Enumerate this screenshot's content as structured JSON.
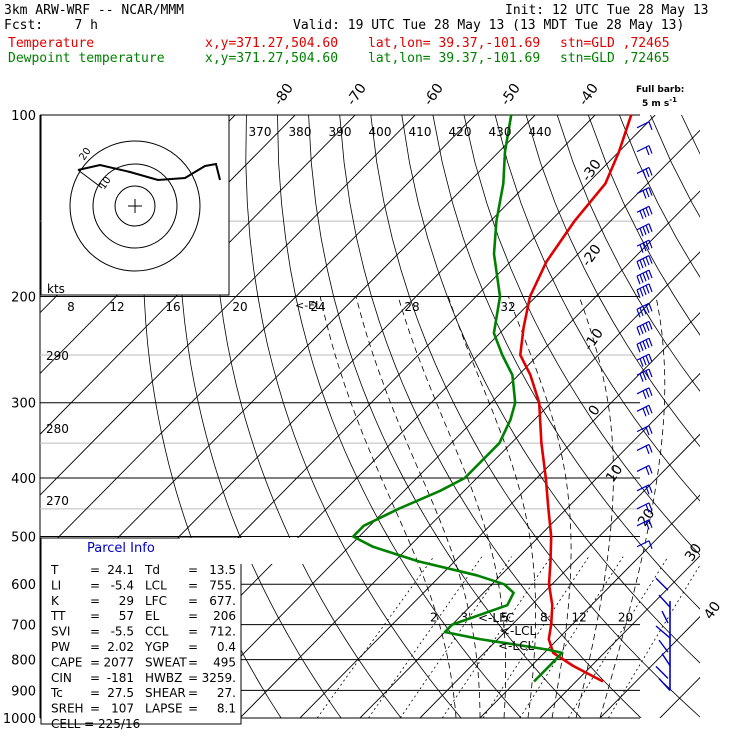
{
  "header": {
    "title": "3km ARW-WRF -- NCAR/MMM",
    "init": "Init: 12 UTC Tue 28 May 13",
    "fcst": "Fcst:    7 h",
    "valid": "Valid: 19 UTC Tue 28 May 13 (13 MDT Tue 28 May 13)",
    "temp_line": {
      "label": "Temperature",
      "xy": "x,y=371.27,504.60",
      "latlon": "lat,lon= 39.37,-101.69",
      "stn": "stn=GLD ,72465"
    },
    "dew_line": {
      "label": "Dewpoint temperature",
      "xy": "x,y=371.27,504.60",
      "latlon": "lat,lon= 39.37,-101.69",
      "stn": "stn=GLD ,72465"
    }
  },
  "colors": {
    "temperature": "#e00000",
    "dewpoint": "#008000",
    "parcel_info": "#0000c0",
    "wind_barbs": "#0000c0"
  },
  "barb_key": {
    "line1": "Full barb:",
    "line2": "5 m s",
    "exp": "-1"
  },
  "chart_data": {
    "type": "line",
    "title": "3km ARW-WRF -- NCAR/MMM",
    "pressure_levels": [
      "100",
      "200",
      "300",
      "400",
      "500",
      "600",
      "700",
      "800",
      "900",
      "1000"
    ],
    "temperature_axis_labels": [
      "-80",
      "-70",
      "-60",
      "-50",
      "-40",
      "-30",
      "-20",
      "-10",
      "0",
      "10",
      "20",
      "30",
      "40"
    ],
    "theta_labels": [
      "370",
      "380",
      "390",
      "400",
      "410",
      "420",
      "430",
      "440"
    ],
    "mixing_ratio_labels": [
      "2",
      "3",
      "5",
      "8",
      "12",
      "20"
    ],
    "series": [
      {
        "name": "Temperature",
        "color": "#e00000",
        "points": [
          {
            "p": 870,
            "t": 24.5
          },
          {
            "p": 820,
            "t": 17
          },
          {
            "p": 780,
            "t": 11.5
          },
          {
            "p": 740,
            "t": 8.5
          },
          {
            "p": 700,
            "t": 6.5
          },
          {
            "p": 650,
            "t": 3.5
          },
          {
            "p": 600,
            "t": -0.5
          },
          {
            "p": 550,
            "t": -4
          },
          {
            "p": 500,
            "t": -8
          },
          {
            "p": 450,
            "t": -13
          },
          {
            "p": 400,
            "t": -18.5
          },
          {
            "p": 350,
            "t": -25
          },
          {
            "p": 300,
            "t": -32
          },
          {
            "p": 270,
            "t": -38
          },
          {
            "p": 250,
            "t": -43
          },
          {
            "p": 225,
            "t": -47
          },
          {
            "p": 200,
            "t": -51
          },
          {
            "p": 175,
            "t": -54
          },
          {
            "p": 150,
            "t": -56
          },
          {
            "p": 130,
            "t": -57
          },
          {
            "p": 115,
            "t": -60
          },
          {
            "p": 100,
            "t": -64
          }
        ]
      },
      {
        "name": "Dewpoint temperature",
        "color": "#008000",
        "points": [
          {
            "p": 870,
            "t": 13
          },
          {
            "p": 820,
            "t": 13
          },
          {
            "p": 780,
            "t": 13
          },
          {
            "p": 770,
            "t": 10
          },
          {
            "p": 740,
            "t": -3
          },
          {
            "p": 720,
            "t": -10
          },
          {
            "p": 700,
            "t": -10
          },
          {
            "p": 650,
            "t": -4
          },
          {
            "p": 620,
            "t": -5
          },
          {
            "p": 600,
            "t": -8
          },
          {
            "p": 580,
            "t": -14
          },
          {
            "p": 550,
            "t": -26
          },
          {
            "p": 520,
            "t": -36
          },
          {
            "p": 500,
            "t": -41
          },
          {
            "p": 480,
            "t": -41
          },
          {
            "p": 450,
            "t": -38
          },
          {
            "p": 420,
            "t": -34
          },
          {
            "p": 400,
            "t": -32
          },
          {
            "p": 350,
            "t": -32
          },
          {
            "p": 320,
            "t": -34
          },
          {
            "p": 300,
            "t": -36
          },
          {
            "p": 270,
            "t": -41
          },
          {
            "p": 250,
            "t": -46
          },
          {
            "p": 230,
            "t": -51
          },
          {
            "p": 200,
            "t": -56
          },
          {
            "p": 170,
            "t": -64
          },
          {
            "p": 150,
            "t": -69
          },
          {
            "p": 130,
            "t": -74
          },
          {
            "p": 115,
            "t": -79
          },
          {
            "p": 100,
            "t": -84
          }
        ]
      }
    ],
    "annotations": [
      "<-EL",
      "<-LFC",
      "<-LCL",
      "<-LCL"
    ],
    "hodograph": {
      "speed_unit": "kts",
      "speed_ticks": [
        "8",
        "12",
        "16",
        "20",
        "24",
        "28",
        "32"
      ],
      "ring_labels": [
        "20",
        "10"
      ],
      "height_labels": [
        "290",
        "280",
        "270"
      ]
    },
    "parcel_info": {
      "title": "Parcel Info",
      "rows": [
        {
          "k1": "T",
          "v1": "24.1",
          "k2": "Td",
          "v2": "13.5"
        },
        {
          "k1": "LI",
          "v1": "-5.4",
          "k2": "LCL",
          "v2": "755."
        },
        {
          "k1": "K",
          "v1": "29",
          "k2": "LFC",
          "v2": "677."
        },
        {
          "k1": "TT",
          "v1": "57",
          "k2": "EL",
          "v2": "206"
        },
        {
          "k1": "SVI",
          "v1": "-5.5",
          "k2": "CCL",
          "v2": "712."
        },
        {
          "k1": "PW",
          "v1": "2.02",
          "k2": "YGP",
          "v2": "0.4"
        },
        {
          "k1": "CAPE",
          "v1": "2077",
          "k2": "SWEAT",
          "v2": "495"
        },
        {
          "k1": "CIN",
          "v1": "-181",
          "k2": "HWBZ",
          "v2": "3259."
        },
        {
          "k1": "Tc",
          "v1": "27.5",
          "k2": "SHEAR",
          "v2": "27."
        },
        {
          "k1": "SREH",
          "v1": "107",
          "k2": "LAPSE",
          "v2": "8.1"
        }
      ],
      "cell": "CELL = 225/16"
    },
    "wind_barbs": {
      "color": "#0000c0",
      "levels": [
        {
          "p": 105,
          "n": 1
        },
        {
          "p": 115,
          "n": 2
        },
        {
          "p": 125,
          "n": 3
        },
        {
          "p": 135,
          "n": 3
        },
        {
          "p": 145,
          "n": 4
        },
        {
          "p": 155,
          "n": 4
        },
        {
          "p": 165,
          "n": 4
        },
        {
          "p": 175,
          "n": 5
        },
        {
          "p": 185,
          "n": 5
        },
        {
          "p": 195,
          "n": 5
        },
        {
          "p": 210,
          "n": 5
        },
        {
          "p": 225,
          "n": 5
        },
        {
          "p": 240,
          "n": 5
        },
        {
          "p": 255,
          "n": 4
        },
        {
          "p": 270,
          "n": 4
        },
        {
          "p": 290,
          "n": 3
        },
        {
          "p": 310,
          "n": 3
        },
        {
          "p": 335,
          "n": 2
        },
        {
          "p": 360,
          "n": 2
        },
        {
          "p": 390,
          "n": 2
        },
        {
          "p": 420,
          "n": 2
        },
        {
          "p": 450,
          "n": 2
        },
        {
          "p": 480,
          "n": 2
        },
        {
          "p": 520,
          "n": 1
        }
      ]
    }
  }
}
